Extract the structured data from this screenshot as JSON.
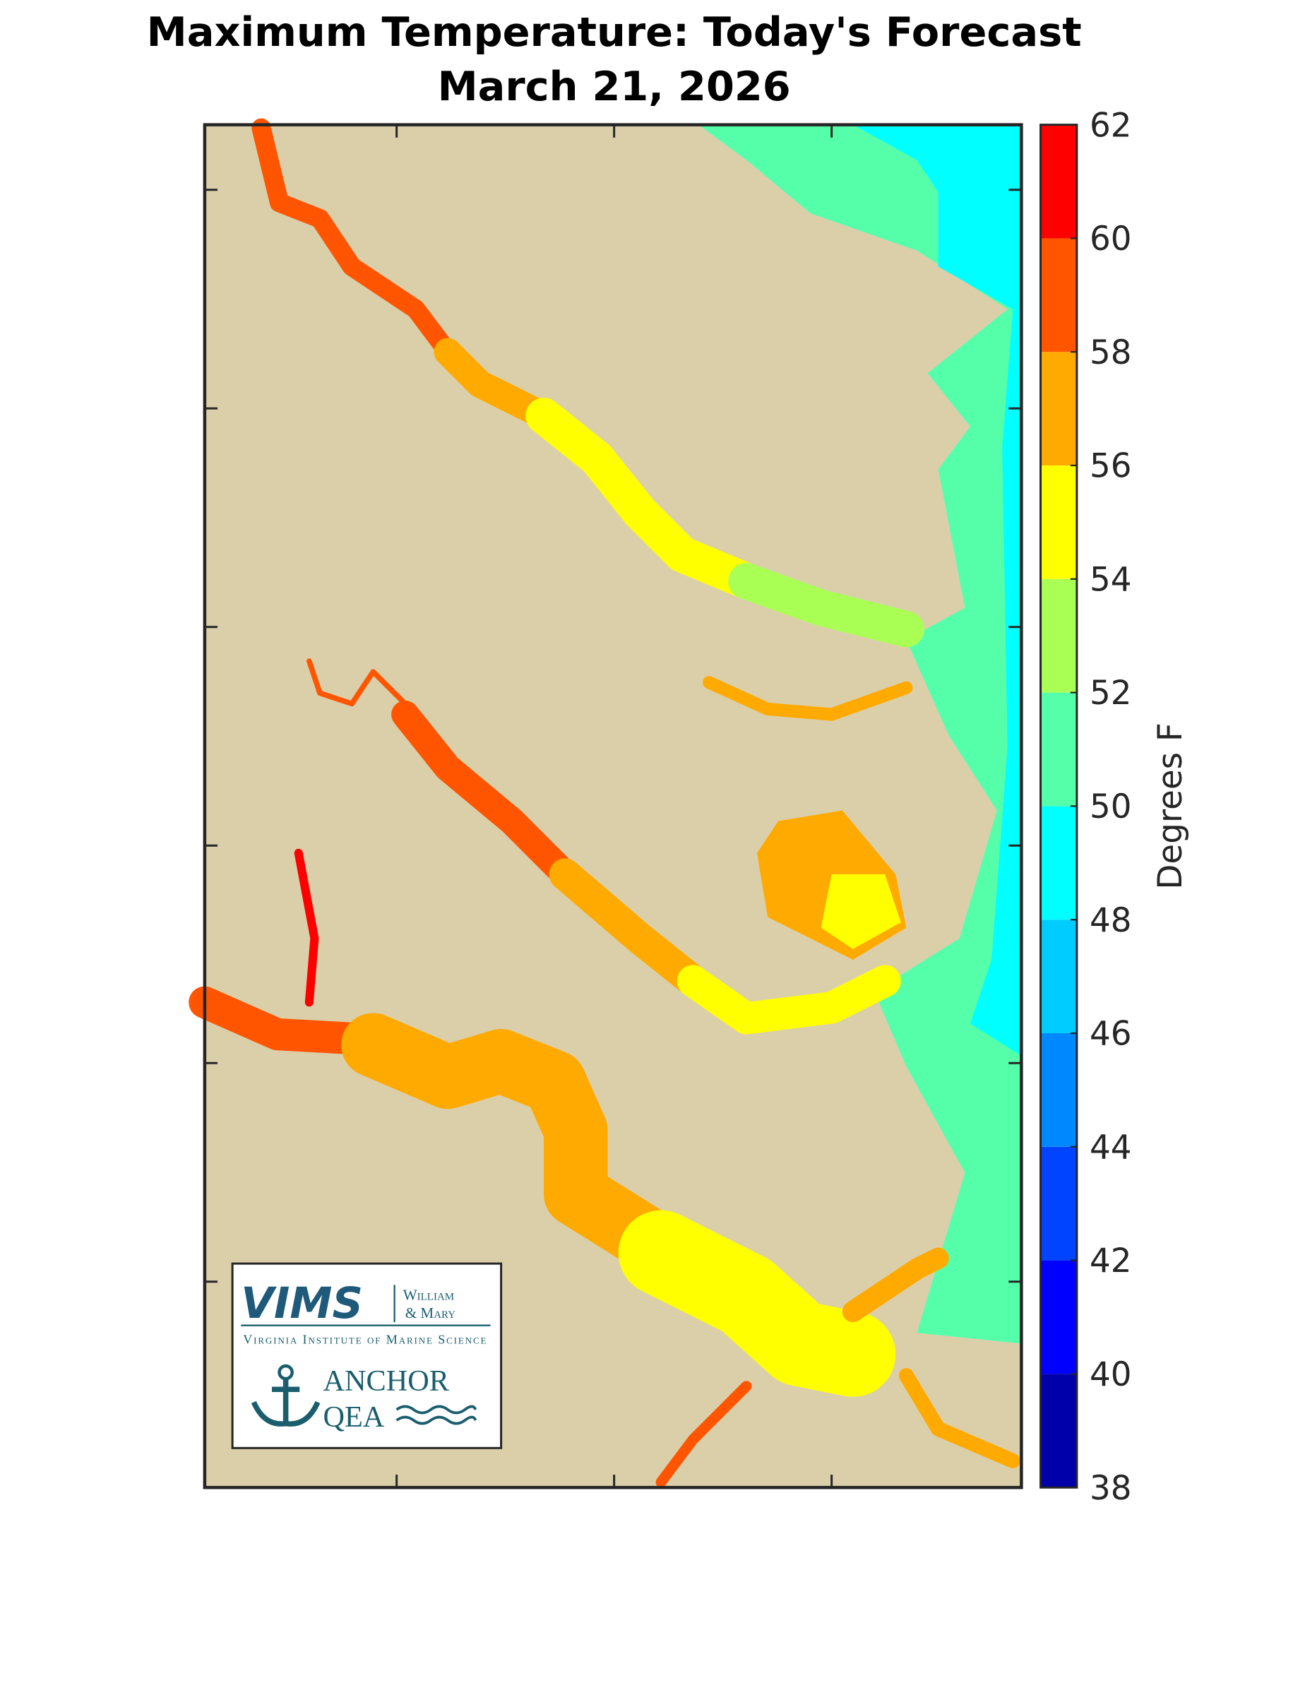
{
  "title": [
    "Maximum Temperature: Today's Forecast",
    "March 21, 2026"
  ],
  "colorbar": {
    "label": "Degrees F",
    "lim": [
      38,
      62
    ],
    "ticks": [
      38,
      40,
      42,
      44,
      46,
      48,
      50,
      52,
      54,
      56,
      58,
      60,
      62
    ],
    "colors": [
      "#0000aa",
      "#0000ff",
      "#0044ff",
      "#0088ff",
      "#00ccff",
      "#00ffff",
      "#55ffaa",
      "#aaff55",
      "#ffff00",
      "#ffaa00",
      "#ff5500",
      "#ff0000"
    ],
    "top_color": "#aa0000"
  },
  "logo": {
    "vims": "VIMS",
    "william": "William",
    "mary": "& Mary",
    "institute": "Virginia Institute of Marine Science",
    "anchor": "ANCHOR",
    "qea": "QEA"
  }
}
